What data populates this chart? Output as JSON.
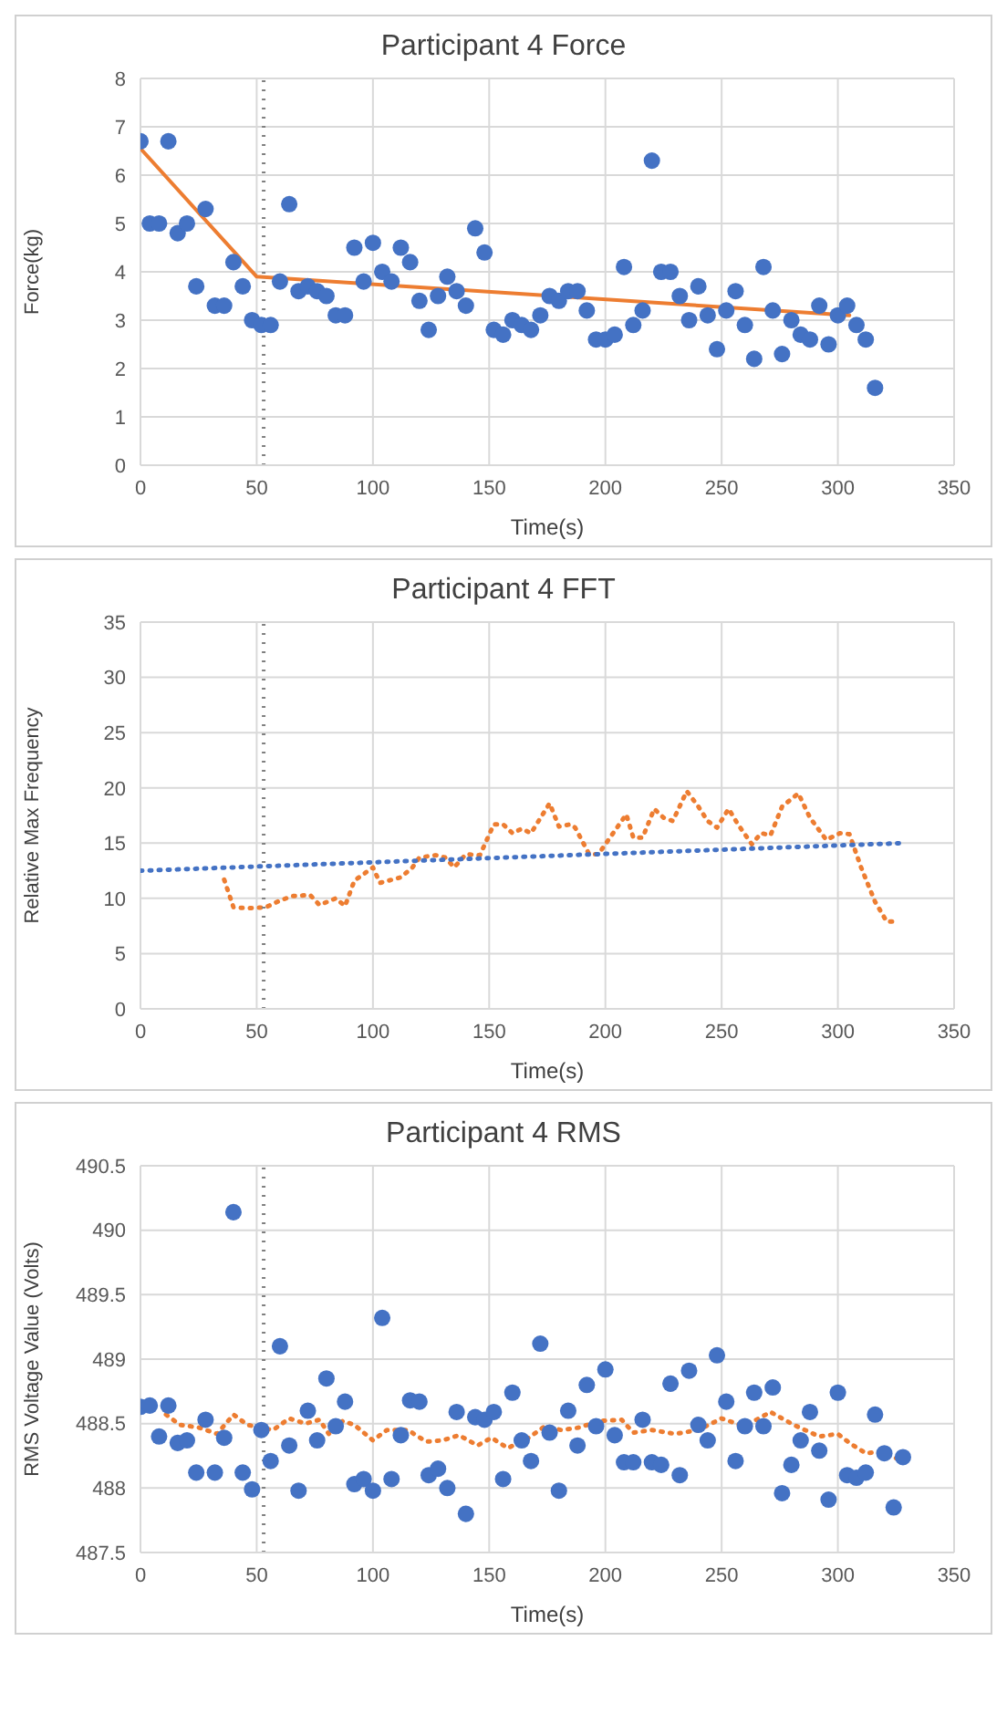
{
  "chart_data": [
    {
      "type": "scatter",
      "title": "Participant 4 Force",
      "xlabel": "Time(s)",
      "ylabel": "Force(kg)",
      "xlim": [
        0,
        350
      ],
      "xticks": [
        0,
        50,
        100,
        150,
        200,
        250,
        300,
        350
      ],
      "ylim": [
        0,
        8
      ],
      "yticks": [
        0,
        1,
        2,
        3,
        4,
        5,
        6,
        7,
        8
      ],
      "grid": true,
      "ref_lines": [
        {
          "axis": "x",
          "value": 53,
          "color": "#808080",
          "line_style": "dotted"
        }
      ],
      "series": [
        {
          "color": "#4472c4",
          "marker": "circle",
          "x": [
            0,
            4,
            8,
            12,
            16,
            20,
            24,
            28,
            32,
            36,
            40,
            44,
            48,
            52,
            56,
            60,
            64,
            68,
            72,
            76,
            80,
            84,
            88,
            92,
            96,
            100,
            104,
            108,
            112,
            116,
            120,
            124,
            128,
            132,
            136,
            140,
            144,
            148,
            152,
            156,
            160,
            164,
            168,
            172,
            176,
            180,
            184,
            188,
            192,
            196,
            200,
            204,
            208,
            212,
            216,
            220,
            224,
            228,
            232,
            236,
            240,
            244,
            248,
            252,
            256,
            260,
            264,
            268,
            272,
            276,
            280,
            284,
            288,
            292,
            296,
            300,
            304,
            308,
            312,
            316
          ],
          "values": [
            6.7,
            5.0,
            5.0,
            6.7,
            4.8,
            5.0,
            3.7,
            5.3,
            3.3,
            3.3,
            4.2,
            3.7,
            3.0,
            2.9,
            2.9,
            3.8,
            5.4,
            3.6,
            3.7,
            3.6,
            3.5,
            3.1,
            3.1,
            4.5,
            3.8,
            4.6,
            4.0,
            3.8,
            4.5,
            4.2,
            3.4,
            2.8,
            3.5,
            3.9,
            3.6,
            3.3,
            4.9,
            4.4,
            2.8,
            2.7,
            3.0,
            2.9,
            2.8,
            3.1,
            3.5,
            3.4,
            3.6,
            3.6,
            3.2,
            2.6,
            2.6,
            2.7,
            4.1,
            2.9,
            3.2,
            6.3,
            4.0,
            4.0,
            3.5,
            3.0,
            3.7,
            3.1,
            2.4,
            3.2,
            3.6,
            2.9,
            2.2,
            4.1,
            3.2,
            2.3,
            3.0,
            2.7,
            2.6,
            3.3,
            2.5,
            3.1,
            3.3,
            2.9,
            2.6,
            1.6
          ]
        },
        {
          "type": "line",
          "color": "#ed7d31",
          "line_style": "solid",
          "x": [
            0,
            50,
            305
          ],
          "values": [
            6.55,
            3.9,
            3.1
          ]
        }
      ]
    },
    {
      "type": "line",
      "title": "Participant 4 FFT",
      "xlabel": "Time(s)",
      "ylabel": "Relative Max Frequency",
      "xlim": [
        0,
        350
      ],
      "xticks": [
        0,
        50,
        100,
        150,
        200,
        250,
        300,
        350
      ],
      "ylim": [
        0,
        35
      ],
      "yticks": [
        0,
        5,
        10,
        15,
        20,
        25,
        30,
        35
      ],
      "grid": true,
      "ref_lines": [
        {
          "axis": "x",
          "value": 53,
          "color": "#808080",
          "line_style": "dotted"
        }
      ],
      "series": [
        {
          "color": "#ed7d31",
          "line_style": "dotted",
          "x": [
            36,
            40,
            46,
            54,
            59,
            65,
            73,
            77,
            84,
            88,
            92,
            100,
            103,
            112,
            117,
            120,
            127,
            131,
            135,
            140,
            146,
            152,
            156,
            160,
            164,
            168,
            176,
            180,
            185,
            187,
            193,
            197,
            205,
            209,
            212,
            216,
            221,
            225,
            229,
            235,
            240,
            244,
            248,
            253,
            257,
            263,
            267,
            271,
            276,
            283,
            288,
            295,
            301,
            305,
            310,
            316,
            321,
            326
          ],
          "values": [
            11.7,
            9.2,
            9.1,
            9.2,
            9.7,
            10.2,
            10.3,
            9.4,
            10.0,
            9.3,
            11.6,
            12.8,
            11.4,
            11.9,
            12.8,
            13.7,
            13.9,
            13.7,
            12.8,
            14.0,
            13.9,
            16.7,
            16.7,
            15.9,
            16.3,
            15.9,
            18.6,
            16.5,
            16.7,
            16.4,
            14.0,
            14.0,
            16.4,
            17.6,
            15.5,
            15.5,
            18.1,
            17.3,
            17.0,
            19.7,
            18.3,
            17.0,
            16.4,
            18.1,
            16.7,
            14.9,
            15.9,
            15.7,
            18.3,
            19.5,
            17.3,
            15.3,
            15.9,
            15.8,
            12.8,
            9.7,
            7.9,
            7.9
          ]
        },
        {
          "color": "#4472c4",
          "line_style": "dotted",
          "x": [
            0,
            328
          ],
          "values": [
            12.5,
            15.0
          ]
        }
      ]
    },
    {
      "type": "scatter",
      "title": "Participant 4 RMS",
      "xlabel": "Time(s)",
      "ylabel": "RMS Voltage Value (Volts)",
      "xlim": [
        0,
        350
      ],
      "xticks": [
        0,
        50,
        100,
        150,
        200,
        250,
        300,
        350
      ],
      "ylim": [
        487.5,
        490.5
      ],
      "yticks": [
        487.5,
        488,
        488.5,
        489,
        489.5,
        490,
        490.5
      ],
      "grid": true,
      "ref_lines": [
        {
          "axis": "x",
          "value": 53,
          "color": "#808080",
          "line_style": "dotted"
        }
      ],
      "series": [
        {
          "color": "#4472c4",
          "marker": "circle",
          "x": [
            0,
            4,
            8,
            12,
            16,
            20,
            24,
            28,
            32,
            36,
            40,
            44,
            48,
            52,
            56,
            60,
            64,
            68,
            72,
            76,
            80,
            84,
            88,
            92,
            96,
            100,
            104,
            108,
            112,
            116,
            120,
            124,
            128,
            132,
            136,
            140,
            144,
            148,
            152,
            156,
            160,
            164,
            168,
            172,
            176,
            180,
            184,
            188,
            192,
            196,
            200,
            204,
            208,
            212,
            216,
            220,
            224,
            228,
            232,
            236,
            240,
            244,
            248,
            252,
            256,
            260,
            264,
            268,
            272,
            276,
            280,
            284,
            288,
            292,
            296,
            300,
            304,
            308,
            312,
            316,
            320,
            324,
            328
          ],
          "values": [
            488.63,
            488.64,
            488.4,
            488.64,
            488.35,
            488.37,
            488.12,
            488.53,
            488.12,
            488.39,
            490.14,
            488.12,
            487.99,
            488.45,
            488.21,
            489.1,
            488.33,
            487.98,
            488.6,
            488.37,
            488.85,
            488.48,
            488.67,
            488.03,
            488.07,
            487.98,
            489.32,
            488.07,
            488.41,
            488.68,
            488.67,
            488.1,
            488.15,
            488.0,
            488.59,
            487.8,
            488.55,
            488.53,
            488.59,
            488.07,
            488.74,
            488.37,
            488.21,
            489.12,
            488.43,
            487.98,
            488.6,
            488.33,
            488.8,
            488.48,
            488.92,
            488.41,
            488.2,
            488.2,
            488.53,
            488.2,
            488.18,
            488.81,
            488.1,
            488.91,
            488.49,
            488.37,
            489.03,
            488.67,
            488.21,
            488.48,
            488.74,
            488.48,
            488.78,
            487.96,
            488.18,
            488.37,
            488.59,
            488.29,
            487.91,
            488.74,
            488.1,
            488.08,
            488.12,
            488.57,
            488.27,
            487.85,
            488.24
          ]
        },
        {
          "type": "line",
          "color": "#ed7d31",
          "line_style": "dotted",
          "x": [
            11,
            17,
            25,
            33,
            40,
            46,
            57,
            64,
            71,
            77,
            81,
            87,
            92,
            100,
            106,
            115,
            123,
            130,
            137,
            145,
            151,
            158,
            167,
            174,
            181,
            189,
            197,
            207,
            212,
            220,
            230,
            240,
            250,
            258,
            265,
            271,
            281,
            292,
            300,
            305,
            312,
            317,
            327
          ],
          "values": [
            488.57,
            488.49,
            488.47,
            488.42,
            488.57,
            488.49,
            488.45,
            488.54,
            488.5,
            488.53,
            488.42,
            488.52,
            488.49,
            488.37,
            488.45,
            488.45,
            488.36,
            488.37,
            488.41,
            488.33,
            488.39,
            488.31,
            488.39,
            488.48,
            488.45,
            488.47,
            488.52,
            488.53,
            488.43,
            488.45,
            488.42,
            488.45,
            488.54,
            488.49,
            488.53,
            488.59,
            488.49,
            488.4,
            488.42,
            488.35,
            488.27,
            488.28,
            488.22
          ]
        }
      ]
    }
  ]
}
